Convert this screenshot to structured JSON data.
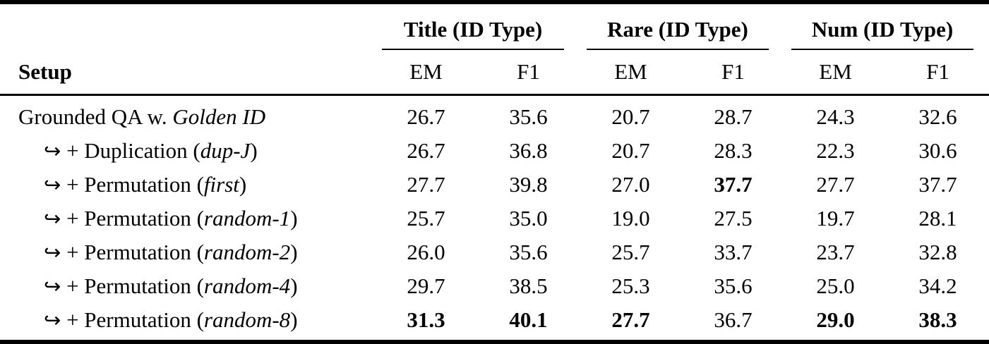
{
  "table": {
    "col_groups": [
      {
        "label": "Title (ID Type)"
      },
      {
        "label": "Rare (ID Type)"
      },
      {
        "label": "Num (ID Type)"
      }
    ],
    "setup_header": "Setup",
    "sub_headers": [
      "EM",
      "F1",
      "EM",
      "F1",
      "EM",
      "F1"
    ],
    "rows": [
      {
        "label": {
          "arrow": "",
          "pre": "Grounded QA w. ",
          "italic": "Golden ID",
          "post": ""
        },
        "cells": [
          {
            "text": "26.7",
            "bold": false
          },
          {
            "text": "35.6",
            "bold": false
          },
          {
            "text": "20.7",
            "bold": false
          },
          {
            "text": "28.7",
            "bold": false
          },
          {
            "text": "24.3",
            "bold": false
          },
          {
            "text": "32.6",
            "bold": false
          }
        ]
      },
      {
        "label": {
          "arrow": "↪",
          "pre": " + Duplication (",
          "italic": "dup-J",
          "post": ")"
        },
        "cells": [
          {
            "text": "26.7",
            "bold": false
          },
          {
            "text": "36.8",
            "bold": false
          },
          {
            "text": "20.7",
            "bold": false
          },
          {
            "text": "28.3",
            "bold": false
          },
          {
            "text": "22.3",
            "bold": false
          },
          {
            "text": "30.6",
            "bold": false
          }
        ]
      },
      {
        "label": {
          "arrow": "↪",
          "pre": " + Permutation (",
          "italic": "first",
          "post": ")"
        },
        "cells": [
          {
            "text": "27.7",
            "bold": false
          },
          {
            "text": "39.8",
            "bold": false
          },
          {
            "text": "27.0",
            "bold": false
          },
          {
            "text": "37.7",
            "bold": true
          },
          {
            "text": "27.7",
            "bold": false
          },
          {
            "text": "37.7",
            "bold": false
          }
        ]
      },
      {
        "label": {
          "arrow": "↪",
          "pre": " + Permutation (",
          "italic": "random-1",
          "post": ")"
        },
        "cells": [
          {
            "text": "25.7",
            "bold": false
          },
          {
            "text": "35.0",
            "bold": false
          },
          {
            "text": "19.0",
            "bold": false
          },
          {
            "text": "27.5",
            "bold": false
          },
          {
            "text": "19.7",
            "bold": false
          },
          {
            "text": "28.1",
            "bold": false
          }
        ]
      },
      {
        "label": {
          "arrow": "↪",
          "pre": " + Permutation (",
          "italic": "random-2",
          "post": ")"
        },
        "cells": [
          {
            "text": "26.0",
            "bold": false
          },
          {
            "text": "35.6",
            "bold": false
          },
          {
            "text": "25.7",
            "bold": false
          },
          {
            "text": "33.7",
            "bold": false
          },
          {
            "text": "23.7",
            "bold": false
          },
          {
            "text": "32.8",
            "bold": false
          }
        ]
      },
      {
        "label": {
          "arrow": "↪",
          "pre": " + Permutation (",
          "italic": "random-4",
          "post": ")"
        },
        "cells": [
          {
            "text": "29.7",
            "bold": false
          },
          {
            "text": "38.5",
            "bold": false
          },
          {
            "text": "25.3",
            "bold": false
          },
          {
            "text": "35.6",
            "bold": false
          },
          {
            "text": "25.0",
            "bold": false
          },
          {
            "text": "34.2",
            "bold": false
          }
        ]
      },
      {
        "label": {
          "arrow": "↪",
          "pre": " + Permutation (",
          "italic": "random-8",
          "post": ")"
        },
        "cells": [
          {
            "text": "31.3",
            "bold": true
          },
          {
            "text": "40.1",
            "bold": true
          },
          {
            "text": "27.7",
            "bold": true
          },
          {
            "text": "36.7",
            "bold": false
          },
          {
            "text": "29.0",
            "bold": true
          },
          {
            "text": "38.3",
            "bold": true
          }
        ]
      }
    ]
  }
}
